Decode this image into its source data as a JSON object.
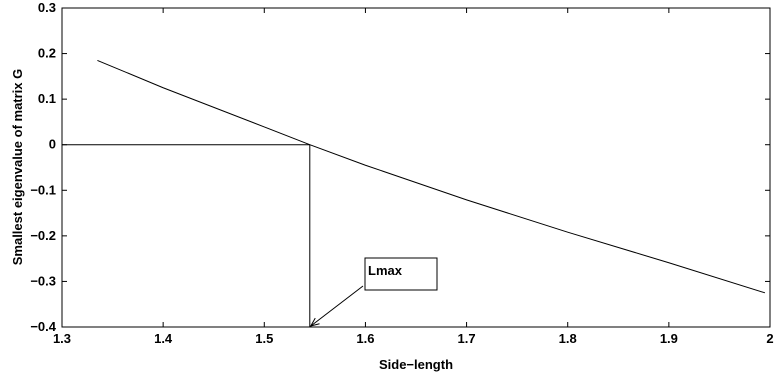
{
  "chart_data": {
    "type": "line",
    "title": "",
    "xlabel": "Side−length",
    "ylabel": "Smallest  eigenvalue of matrix G",
    "xlim": [
      1.3,
      2.0
    ],
    "ylim": [
      -0.4,
      0.3
    ],
    "grid": false,
    "xticks": [
      1.3,
      1.4,
      1.5,
      1.6,
      1.7,
      1.8,
      1.9,
      2.0
    ],
    "xtick_labels": [
      "1.3",
      "1.4",
      "1.5",
      "1.6",
      "1.7",
      "1.8",
      "1.9",
      "2"
    ],
    "yticks": [
      -0.4,
      -0.3,
      -0.2,
      -0.1,
      0,
      0.1,
      0.2,
      0.3
    ],
    "ytick_labels": [
      "−0.4",
      "−0.3",
      "−0.2",
      "−0.1",
      "0",
      "0.1",
      "0.2",
      "0.3"
    ],
    "series": [
      {
        "x": [
          1.335,
          1.4,
          1.5,
          1.545,
          1.6,
          1.7,
          1.8,
          1.9,
          1.995
        ],
        "y": [
          0.185,
          0.125,
          0.039,
          0.0,
          -0.045,
          -0.121,
          -0.192,
          -0.259,
          -0.325
        ]
      }
    ],
    "reference_lines": [
      {
        "x": [
          1.3,
          1.545
        ],
        "y": [
          0,
          0
        ]
      },
      {
        "x": [
          1.545,
          1.545
        ],
        "y": [
          0,
          -0.4
        ]
      }
    ],
    "annotation": {
      "text": "Lmax",
      "arrow_to": {
        "x": 1.545,
        "y": -0.4
      }
    }
  }
}
